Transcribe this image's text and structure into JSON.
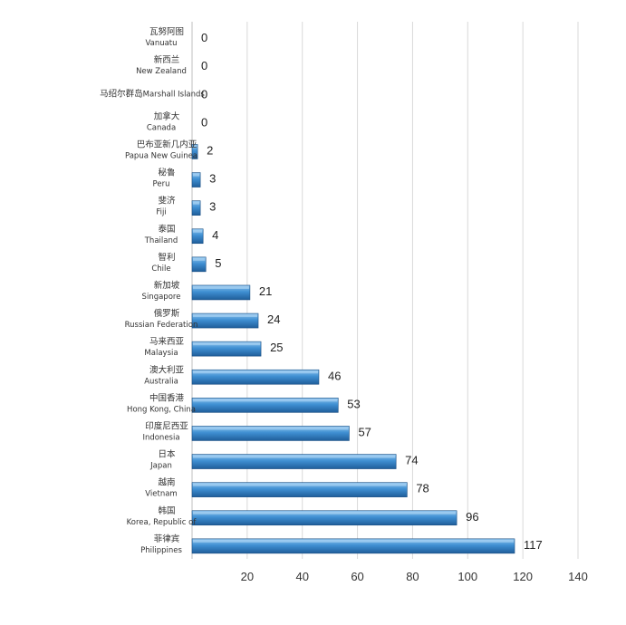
{
  "chart_data": {
    "type": "bar",
    "orientation": "horizontal",
    "categories": [
      {
        "cn": "瓦努阿图",
        "en": "Vanuatu"
      },
      {
        "cn": "新西兰",
        "en": "New Zealand"
      },
      {
        "cn": "马绍尔群岛",
        "en": "Marshall Islands"
      },
      {
        "cn": "加拿大",
        "en": "Canada"
      },
      {
        "cn": "巴布亚新几内亚",
        "en": "Papua New Guinea"
      },
      {
        "cn": "秘鲁",
        "en": "Peru"
      },
      {
        "cn": "斐济",
        "en": "Fiji"
      },
      {
        "cn": "泰国",
        "en": "Thailand"
      },
      {
        "cn": "智利",
        "en": "Chile"
      },
      {
        "cn": "新加坡",
        "en": "Singapore"
      },
      {
        "cn": "俄罗斯",
        "en": "Russian Federation"
      },
      {
        "cn": "马来西亚",
        "en": "Malaysia"
      },
      {
        "cn": "澳大利亚",
        "en": "Australia"
      },
      {
        "cn": "中国香港",
        "en": "Hong Kong, China"
      },
      {
        "cn": "印度尼西亚",
        "en": "Indonesia"
      },
      {
        "cn": "日本",
        "en": "Japan"
      },
      {
        "cn": "越南",
        "en": "Vietnam"
      },
      {
        "cn": "韩国",
        "en": "Korea, Republic of"
      },
      {
        "cn": "菲律宾",
        "en": "Philippines"
      }
    ],
    "values": [
      0,
      0,
      0,
      0,
      2,
      3,
      3,
      4,
      5,
      21,
      24,
      25,
      46,
      53,
      57,
      74,
      78,
      96,
      117
    ],
    "xlim": [
      0,
      140
    ],
    "xticks": [
      20,
      40,
      60,
      80,
      100,
      120,
      140
    ],
    "grid": true,
    "title": "",
    "xlabel": "",
    "ylabel": "",
    "colors": {
      "bar_light": "#8cc3ee",
      "bar_mid": "#3f8fd2",
      "bar_dark": "#1f5e9a",
      "gridline": "#d9d9d9",
      "axis": "#bfbfbf"
    }
  }
}
